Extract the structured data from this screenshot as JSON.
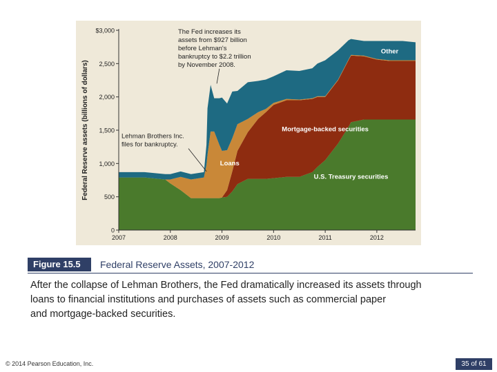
{
  "figure": {
    "label": "Figure 15.5",
    "title": "Federal Reserve Assets, 2007-2012"
  },
  "caption_lines": [
    "After the collapse of Lehman Brothers, the Fed dramatically increased its assets through",
    "loans to financial institutions and purchases of assets such as commercial paper",
    "and mortgage-backed securities."
  ],
  "footer": {
    "copyright": "© 2014 Pearson Education, Inc.",
    "page": "35 of 61"
  },
  "chart_data": {
    "type": "area",
    "stacked": true,
    "ylabel": "Federal Reserve assets (billions of dollars)",
    "xlim": [
      2007,
      2012.75
    ],
    "ylim": [
      0,
      3000
    ],
    "grid": false,
    "x_ticks": [
      2007,
      2008,
      2009,
      2010,
      2011,
      2012
    ],
    "x_tick_labels": [
      "2007",
      "2008",
      "2009",
      "2010",
      "2011",
      "2012"
    ],
    "y_ticks": [
      0,
      500,
      1000,
      1500,
      2000,
      2500,
      3000
    ],
    "y_tick_labels": [
      "0",
      "500",
      "1,000",
      "1,500",
      "2,000",
      "2,500",
      "$3,000"
    ],
    "x": [
      2007.0,
      2007.5,
      2007.9,
      2008.0,
      2008.2,
      2008.4,
      2008.65,
      2008.7,
      2008.72,
      2008.78,
      2008.85,
      2008.9,
      2008.95,
      2009.0,
      2009.1,
      2009.2,
      2009.3,
      2009.5,
      2009.7,
      2009.85,
      2010.0,
      2010.25,
      2010.5,
      2010.75,
      2010.85,
      2011.0,
      2011.25,
      2011.45,
      2011.5,
      2011.75,
      2012.0,
      2012.25,
      2012.5,
      2012.75
    ],
    "series": [
      {
        "name": "U.S. Treasury securities",
        "color": "#4a7a2c",
        "values": [
          790,
          790,
          760,
          700,
          600,
          480,
          480,
          480,
          480,
          480,
          480,
          480,
          480,
          490,
          500,
          580,
          690,
          770,
          770,
          770,
          780,
          800,
          800,
          870,
          950,
          1050,
          1300,
          1550,
          1620,
          1660,
          1660,
          1660,
          1660,
          1660
        ]
      },
      {
        "name": "Mortgage-backed securities",
        "color": "#8e2c10",
        "values": [
          0,
          0,
          0,
          0,
          0,
          0,
          0,
          0,
          0,
          0,
          0,
          0,
          0,
          0,
          100,
          300,
          500,
          700,
          900,
          1000,
          1100,
          1150,
          1150,
          1100,
          1050,
          950,
          950,
          1000,
          1000,
          950,
          900,
          880,
          880,
          880
        ]
      },
      {
        "name": "Loans",
        "color": "#c98838",
        "values": [
          0,
          0,
          0,
          60,
          200,
          280,
          310,
          500,
          650,
          1000,
          1000,
          900,
          800,
          700,
          600,
          500,
          400,
          200,
          100,
          50,
          30,
          20,
          10,
          10,
          10,
          10,
          10,
          10,
          10,
          10,
          10,
          10,
          10,
          10
        ]
      },
      {
        "name": "Other",
        "color": "#1e6a82",
        "values": [
          80,
          80,
          80,
          80,
          80,
          80,
          80,
          300,
          700,
          700,
          500,
          600,
          700,
          800,
          700,
          700,
          500,
          550,
          470,
          440,
          400,
          430,
          430,
          450,
          490,
          540,
          440,
          290,
          240,
          220,
          270,
          290,
          290,
          270
        ]
      }
    ],
    "annotations": [
      {
        "text": [
          "The Fed increases its",
          "assets from $927 billion",
          "before Lehman's",
          "bankruptcy to $2.2 trillion",
          "by November 2008."
        ],
        "pointer": [
          2008.9,
          2200
        ]
      },
      {
        "text": [
          "Lehman Brothers Inc.",
          "files for bankruptcy."
        ],
        "pointer": [
          2008.7,
          880
        ]
      }
    ]
  }
}
